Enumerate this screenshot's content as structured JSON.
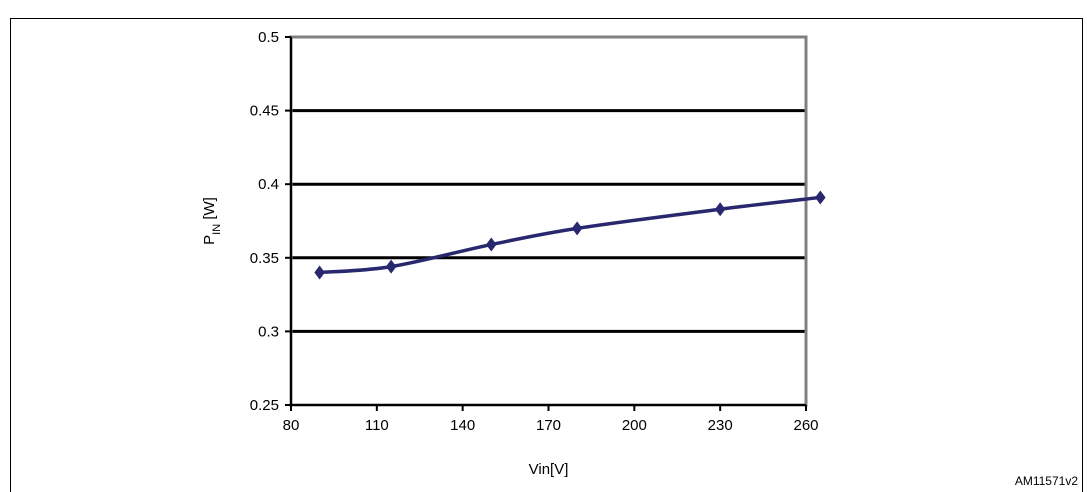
{
  "chart_data": {
    "type": "line",
    "title": "",
    "xlabel": "Vin[V]",
    "ylabel_main": "P",
    "ylabel_sub": "IN",
    "ylabel_unit": " [W]",
    "xlim": [
      80,
      260
    ],
    "ylim": [
      0.25,
      0.5
    ],
    "x_ticks": [
      80,
      110,
      140,
      170,
      200,
      230,
      260
    ],
    "y_ticks": [
      0.25,
      0.3,
      0.35,
      0.4,
      0.45,
      0.5
    ],
    "x_tick_labels": [
      "80",
      "110",
      "140",
      "170",
      "200",
      "230",
      "260"
    ],
    "y_tick_labels": [
      "0.25",
      "0.3",
      "0.35",
      "0.4",
      "0.45",
      "0.5"
    ],
    "grid": true,
    "series": [
      {
        "x": [
          90,
          115,
          150,
          180,
          230,
          265
        ],
        "values": [
          0.34,
          0.344,
          0.359,
          0.37,
          0.383,
          0.391
        ]
      }
    ],
    "line_color": "#27286e",
    "figure_id": "AM11571v2"
  }
}
